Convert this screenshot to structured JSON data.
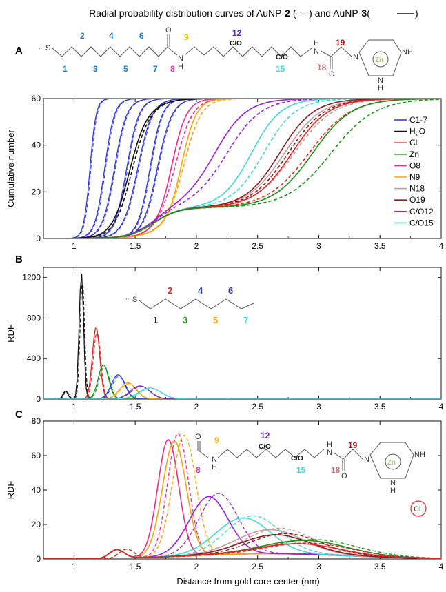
{
  "figure": {
    "title_prefix": "Radial probability distribution curves of AuNP-",
    "title_np2": "2",
    "title_mid": " (",
    "title_dash_note": "----",
    "title_and": ") and AuNP-",
    "title_np3": "3",
    "title_solid_note": "(",
    "title_end": ")",
    "xlabel": "Distance from gold core center (nm)"
  },
  "molecule_A": {
    "atom_S": "S",
    "numbers_top": [
      "2",
      "4",
      "6",
      "9",
      "12",
      "19"
    ],
    "numbers_bottom": [
      "1",
      "3",
      "5",
      "7",
      "8",
      "15",
      "18"
    ],
    "atom_O1": "O",
    "atom_NH1": "N",
    "atom_H1": "H",
    "co12": "C/O",
    "co15": "C/O",
    "atom_NH2": "H",
    "atom_N2": "N",
    "atom_O2": "O",
    "ring_N": "N",
    "ring_NH_right": "NH",
    "ring_NH_bottom": "N",
    "ring_H_bottom": "H",
    "zn": "Zn"
  },
  "molecule_B": {
    "atom_S": "S",
    "numbers_top": [
      "2",
      "4",
      "6"
    ],
    "numbers_bottom": [
      "1",
      "3",
      "5",
      "7"
    ]
  },
  "molecule_C": {
    "atom_O": "O",
    "atom_N": "N",
    "atom_H": "H",
    "co12": "C/O",
    "co15": "C/O",
    "num9": "9",
    "num12": "12",
    "num8": "8",
    "num15": "15",
    "num18": "18",
    "num19": "19",
    "atom_NH2": "H",
    "atom_N2": "N",
    "atom_O2": "O",
    "ring_N": "N",
    "ring_NH_right": "NH",
    "ring_NH_bottom": "N",
    "ring_H_bottom": "H",
    "zn": "Zn",
    "cl": "Cl"
  },
  "colors": {
    "C1-7": "#2a2fd6",
    "H2O": "#111111",
    "Cl": "#e52222",
    "Zn": "#1a8f1a",
    "O8": "#ee2a8a",
    "N9": "#f5a20d",
    "N18": "#c49a9a",
    "O19": "#8b1a1a",
    "C/O12": "#9a1fd6",
    "C/O15": "#3ed6d6",
    "c1": "#111111",
    "c2": "#e52222",
    "c3": "#1a8f1a",
    "c4": "#1a3fe0",
    "c5": "#f5a20d",
    "c6": "#7a2fb8",
    "c7": "#3ed6d6",
    "num_blue": "#1f7bc4",
    "num_yellow": "#e8b80d",
    "num_magenta": "#ee2a8a",
    "num_purple": "#6a1fc0",
    "num_cyan": "#3ed6d6",
    "num_rose": "#c97070",
    "num_darkred": "#a01818"
  },
  "chart_data": [
    {
      "type": "line",
      "panel": "A",
      "ylabel": "Cumulative number",
      "xlim": [
        0.75,
        4
      ],
      "ylim": [
        0,
        60
      ],
      "xticks": [
        "1",
        "1.5",
        "2",
        "2.5",
        "3",
        "3.5",
        "4"
      ],
      "yticks": [
        "0",
        "20",
        "40",
        "60"
      ],
      "legend_position": "right",
      "legend": [
        "C1-7",
        "H2O",
        "Cl",
        "Zn",
        "O8",
        "N9",
        "N18",
        "O19",
        "C/O12",
        "C/O15"
      ],
      "legend_H": "H",
      "legend_2": "2",
      "legend_O": "O",
      "series": [
        {
          "name": "C1-7",
          "midpoints": [
            1.13,
            1.25,
            1.33,
            1.43,
            1.52,
            1.62,
            1.68
          ],
          "widths": [
            0.025,
            0.04,
            0.05,
            0.05,
            0.06,
            0.05,
            0.06
          ]
        },
        {
          "name": "H2O",
          "midpoints": [
            1.45,
            1.47
          ],
          "widths": [
            0.07,
            0.07
          ]
        },
        {
          "name": "O8",
          "midpoints": [
            1.8,
            1.83
          ],
          "widths": [
            0.06,
            0.07
          ]
        },
        {
          "name": "N9",
          "midpoints": [
            1.88,
            1.9
          ],
          "widths": [
            0.06,
            0.07
          ]
        },
        {
          "name": "C/O12",
          "midpoints": [
            2.15,
            2.25
          ],
          "widths": [
            0.13,
            0.14
          ]
        },
        {
          "name": "C/O15",
          "midpoints": [
            2.45,
            2.55
          ],
          "widths": [
            0.12,
            0.13
          ]
        },
        {
          "name": "N18",
          "midpoints": [
            2.72,
            2.8
          ],
          "widths": [
            0.15,
            0.16
          ]
        },
        {
          "name": "O19",
          "midpoints": [
            2.68,
            2.75
          ],
          "widths": [
            0.14,
            0.15
          ]
        },
        {
          "name": "Cl",
          "midpoints": [
            2.78,
            2.92
          ],
          "widths": [
            0.15,
            0.17
          ]
        },
        {
          "name": "Zn",
          "midpoints": [
            2.95,
            3.1
          ],
          "widths": [
            0.16,
            0.18
          ]
        }
      ]
    },
    {
      "type": "line",
      "panel": "B",
      "ylabel": "RDF",
      "xlim": [
        0.75,
        4
      ],
      "ylim": [
        0,
        1300
      ],
      "xticks": [
        "1",
        "1.5",
        "2",
        "2.5",
        "3",
        "3.5",
        "4"
      ],
      "yticks": [
        "0",
        "400",
        "800",
        "1200"
      ],
      "series": [
        {
          "name": "1",
          "peak_x": 1.06,
          "peak_y": 1250
        },
        {
          "name": "2",
          "peak_x": 1.18,
          "peak_y": 710
        },
        {
          "name": "3",
          "peak_x": 1.24,
          "peak_y": 340
        },
        {
          "name": "4",
          "peak_x": 1.36,
          "peak_y": 240
        },
        {
          "name": "5",
          "peak_x": 1.44,
          "peak_y": 160
        },
        {
          "name": "6",
          "peak_x": 1.54,
          "peak_y": 130
        },
        {
          "name": "7",
          "peak_x": 1.62,
          "peak_y": 110
        }
      ]
    },
    {
      "type": "line",
      "panel": "C",
      "ylabel": "RDF",
      "xlim": [
        0.75,
        4
      ],
      "ylim": [
        0,
        80
      ],
      "xticks": [
        "1",
        "1.5",
        "2",
        "2.5",
        "3",
        "3.5",
        "4"
      ],
      "yticks": [
        "0",
        "20",
        "40",
        "60",
        "80"
      ],
      "series": [
        {
          "name": "O8",
          "peak_x": 1.77,
          "peak_y": 68
        },
        {
          "name": "N9",
          "peak_x": 1.82,
          "peak_y": 67
        },
        {
          "name": "C/O12",
          "peak_x": 2.1,
          "peak_y": 34
        },
        {
          "name": "C/O15",
          "peak_x": 2.38,
          "peak_y": 21
        },
        {
          "name": "N18",
          "peak_x": 2.6,
          "peak_y": 14
        },
        {
          "name": "O19",
          "peak_x": 2.65,
          "peak_y": 11
        },
        {
          "name": "Zn",
          "peak_x": 2.9,
          "peak_y": 8
        },
        {
          "name": "Cl",
          "peak_x": 2.85,
          "peak_y": 6
        }
      ]
    }
  ],
  "panel_labels": [
    "A",
    "B",
    "C"
  ]
}
